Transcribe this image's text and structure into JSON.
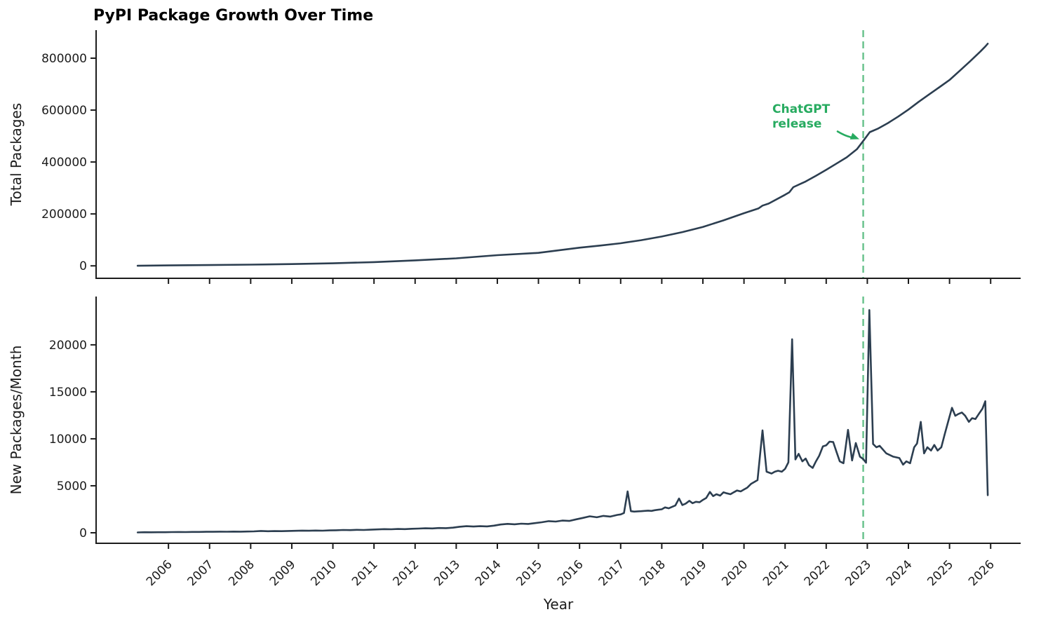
{
  "title": "PyPI Package Growth Over Time",
  "annotation": {
    "line1": "ChatGPT",
    "line2": "release"
  },
  "colors": {
    "line": "#2c3e50",
    "green": "#27ab60",
    "dashed_green": "#66c18a",
    "spine": "#1c1c1c",
    "tick_text": "#1c1c1c"
  },
  "chart_data": [
    {
      "type": "line",
      "name": "total-packages",
      "title": "PyPI Package Growth Over Time",
      "xlabel": "",
      "ylabel": "Total Packages",
      "grid": false,
      "legend": null,
      "xlim": [
        2004.24,
        2026.73
      ],
      "ylim": [
        -48000,
        908000
      ],
      "yticks": [
        0,
        200000,
        400000,
        600000,
        800000
      ],
      "xticks": [
        2006,
        2007,
        2008,
        2009,
        2010,
        2011,
        2012,
        2013,
        2014,
        2015,
        2016,
        2017,
        2018,
        2019,
        2020,
        2021,
        2022,
        2023,
        2024,
        2025,
        2026
      ],
      "show_xtick_labels": false,
      "vline_x": 2022.9,
      "x": [
        2005.25,
        2006,
        2007,
        2008,
        2009,
        2010,
        2011,
        2012,
        2013,
        2014,
        2015,
        2016,
        2016.5,
        2017,
        2017.5,
        2018,
        2018.5,
        2019,
        2019.5,
        2020,
        2020.35,
        2020.45,
        2020.6,
        2021,
        2021.1,
        2021.2,
        2021.5,
        2021.75,
        2022,
        2022.25,
        2022.5,
        2022.75,
        2022.92,
        2023.06,
        2023.25,
        2023.5,
        2023.75,
        2024,
        2024.25,
        2024.5,
        2024.75,
        2025,
        2025.25,
        2025.5,
        2025.75,
        2025.87,
        2025.93
      ],
      "values": [
        300,
        1800,
        3000,
        4600,
        6800,
        9800,
        14500,
        21000,
        29000,
        41000,
        50000,
        70000,
        78000,
        87000,
        99000,
        113000,
        130000,
        150000,
        175000,
        203000,
        221000,
        232000,
        240000,
        274000,
        283000,
        303000,
        325000,
        347000,
        370000,
        394000,
        418000,
        450000,
        485000,
        515000,
        528000,
        550000,
        575000,
        602000,
        632000,
        660000,
        688000,
        716000,
        752000,
        788000,
        826000,
        845000,
        856000
      ]
    },
    {
      "type": "line",
      "name": "new-packages-per-month",
      "title": "",
      "xlabel": "Year",
      "ylabel": "New Packages/Month",
      "grid": false,
      "legend": null,
      "xlim": [
        2004.24,
        2026.73
      ],
      "ylim": [
        -1120,
        25140
      ],
      "yticks": [
        0,
        5000,
        10000,
        15000,
        20000
      ],
      "xticks": [
        2006,
        2007,
        2008,
        2009,
        2010,
        2011,
        2012,
        2013,
        2014,
        2015,
        2016,
        2017,
        2018,
        2019,
        2020,
        2021,
        2022,
        2023,
        2024,
        2025,
        2026
      ],
      "show_xtick_labels": true,
      "vline_x": 2022.9,
      "x": [
        2005.25,
        2005.42,
        2005.58,
        2005.75,
        2005.92,
        2006.08,
        2006.25,
        2006.42,
        2006.58,
        2006.75,
        2006.92,
        2007.08,
        2007.25,
        2007.42,
        2007.58,
        2007.75,
        2007.92,
        2008.08,
        2008.25,
        2008.42,
        2008.58,
        2008.75,
        2008.92,
        2009.08,
        2009.25,
        2009.42,
        2009.58,
        2009.75,
        2009.92,
        2010.08,
        2010.25,
        2010.42,
        2010.58,
        2010.75,
        2010.92,
        2011.08,
        2011.25,
        2011.42,
        2011.58,
        2011.75,
        2011.92,
        2012.08,
        2012.25,
        2012.42,
        2012.58,
        2012.75,
        2012.92,
        2013.08,
        2013.25,
        2013.42,
        2013.58,
        2013.75,
        2013.92,
        2014.08,
        2014.25,
        2014.42,
        2014.58,
        2014.75,
        2014.92,
        2015.08,
        2015.25,
        2015.42,
        2015.58,
        2015.75,
        2015.92,
        2016.08,
        2016.25,
        2016.42,
        2016.58,
        2016.75,
        2016.92,
        2017.0,
        2017.08,
        2017.17,
        2017.25,
        2017.33,
        2017.42,
        2017.5,
        2017.58,
        2017.67,
        2017.75,
        2017.83,
        2017.92,
        2018.0,
        2018.08,
        2018.17,
        2018.25,
        2018.33,
        2018.42,
        2018.5,
        2018.58,
        2018.67,
        2018.75,
        2018.83,
        2018.92,
        2019.0,
        2019.08,
        2019.17,
        2019.25,
        2019.33,
        2019.42,
        2019.5,
        2019.58,
        2019.67,
        2019.75,
        2019.83,
        2019.92,
        2020.0,
        2020.08,
        2020.17,
        2020.25,
        2020.33,
        2020.45,
        2020.55,
        2020.67,
        2020.75,
        2020.83,
        2020.92,
        2021.0,
        2021.08,
        2021.17,
        2021.25,
        2021.33,
        2021.42,
        2021.5,
        2021.58,
        2021.67,
        2021.75,
        2021.83,
        2021.92,
        2022.0,
        2022.08,
        2022.17,
        2022.25,
        2022.33,
        2022.42,
        2022.53,
        2022.63,
        2022.72,
        2022.82,
        2022.9,
        2022.97,
        2023.05,
        2023.14,
        2023.22,
        2023.3,
        2023.46,
        2023.63,
        2023.78,
        2023.87,
        2023.95,
        2024.04,
        2024.14,
        2024.21,
        2024.3,
        2024.38,
        2024.46,
        2024.55,
        2024.63,
        2024.71,
        2024.8,
        2024.88,
        2024.97,
        2025.06,
        2025.14,
        2025.22,
        2025.3,
        2025.38,
        2025.47,
        2025.55,
        2025.63,
        2025.72,
        2025.8,
        2025.87,
        2025.93
      ],
      "values": [
        40,
        55,
        50,
        60,
        55,
        70,
        80,
        75,
        90,
        85,
        100,
        105,
        115,
        110,
        125,
        120,
        135,
        150,
        190,
        160,
        175,
        170,
        190,
        210,
        230,
        215,
        235,
        225,
        250,
        270,
        300,
        285,
        310,
        300,
        330,
        360,
        390,
        370,
        400,
        390,
        425,
        450,
        480,
        465,
        510,
        495,
        545,
        640,
        700,
        660,
        700,
        680,
        760,
        880,
        950,
        900,
        970,
        940,
        1030,
        1120,
        1240,
        1190,
        1300,
        1260,
        1430,
        1580,
        1750,
        1650,
        1800,
        1720,
        1900,
        1950,
        2100,
        4400,
        2300,
        2250,
        2280,
        2300,
        2330,
        2360,
        2330,
        2400,
        2450,
        2500,
        2700,
        2600,
        2750,
        2900,
        3650,
        2950,
        3100,
        3400,
        3150,
        3300,
        3250,
        3500,
        3700,
        4350,
        3900,
        4100,
        3950,
        4300,
        4200,
        4100,
        4300,
        4500,
        4400,
        4600,
        4800,
        5200,
        5400,
        5600,
        10900,
        6500,
        6300,
        6500,
        6600,
        6500,
        6800,
        7500,
        20600,
        7800,
        8400,
        7600,
        7900,
        7200,
        6900,
        7600,
        8200,
        9200,
        9300,
        9700,
        9650,
        8600,
        7600,
        7400,
        10950,
        7700,
        9550,
        8100,
        7850,
        7450,
        23700,
        9450,
        9100,
        9250,
        8450,
        8100,
        7950,
        7250,
        7600,
        7400,
        9100,
        9500,
        11800,
        8450,
        9100,
        8750,
        9350,
        8750,
        9100,
        10450,
        11900,
        13300,
        12450,
        12650,
        12800,
        12450,
        11800,
        12200,
        12100,
        12700,
        13200,
        14000,
        4000
      ]
    }
  ]
}
